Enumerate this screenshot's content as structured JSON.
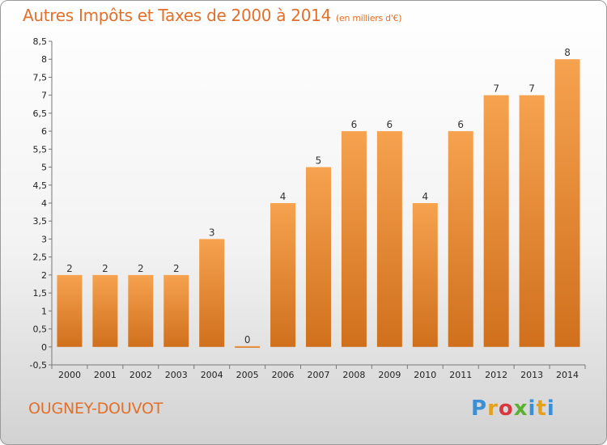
{
  "header": {
    "title": "Autres Impôts et Taxes de 2000 à 2014",
    "subtitle": "(en milliers d'€)"
  },
  "footer": {
    "commune": "OUGNEY-DOUVOT",
    "logo_letters": [
      "P",
      "r",
      "o",
      "x",
      "i",
      "t",
      "i"
    ],
    "logo_colors": [
      "#3a8fd6",
      "#e6a11c",
      "#d9363e",
      "#5bb033",
      "#3a8fd6",
      "#e6a11c",
      "#3a8fd6"
    ]
  },
  "colors": {
    "bar_light": "#f6a24f",
    "bar_dark": "#d0701d",
    "accent": "#e2702a"
  },
  "chart_data": {
    "type": "bar",
    "title": "Autres Impôts et Taxes de 2000 à 2014",
    "subtitle": "(en milliers d'€)",
    "categories": [
      "2000",
      "2001",
      "2002",
      "2003",
      "2004",
      "2005",
      "2006",
      "2007",
      "2008",
      "2009",
      "2010",
      "2011",
      "2012",
      "2013",
      "2014"
    ],
    "values": [
      2,
      2,
      2,
      2,
      3,
      0,
      4,
      5,
      6,
      6,
      4,
      6,
      7,
      7,
      8
    ],
    "value_labels": [
      "2",
      "2",
      "2",
      "2",
      "3",
      "0",
      "4",
      "5",
      "6",
      "6",
      "4",
      "6",
      "7",
      "7",
      "8"
    ],
    "ylim": [
      -0.5,
      8.5
    ],
    "yticks": [
      "-0,5",
      "0",
      "0,5",
      "1",
      "1,5",
      "2",
      "2,5",
      "3",
      "3,5",
      "4",
      "4,5",
      "5",
      "5,5",
      "6",
      "6,5",
      "7",
      "7,5",
      "8",
      "8,5"
    ],
    "grid": false,
    "xlabel": "",
    "ylabel": ""
  }
}
